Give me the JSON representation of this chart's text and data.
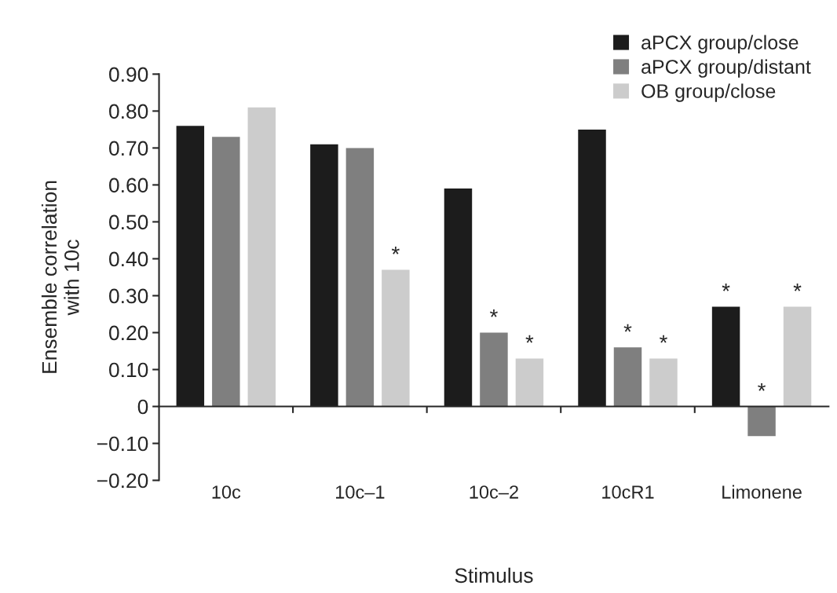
{
  "chart_data": {
    "type": "bar",
    "xlabel": "Stimulus",
    "ylabel": "Ensemble correlation\nwith 10c",
    "categories": [
      "10c",
      "10c–1",
      "10c–2",
      "10cR1",
      "Limonene"
    ],
    "series": [
      {
        "name": "aPCX group/close",
        "color": "#1c1c1c",
        "values": [
          0.76,
          0.71,
          0.59,
          0.75,
          0.27
        ],
        "value_labels": [
          null,
          null,
          null,
          null,
          "*"
        ]
      },
      {
        "name": "aPCX group/distant",
        "color": "#7f7f7f",
        "values": [
          0.73,
          0.7,
          0.2,
          0.16,
          -0.08
        ],
        "value_labels": [
          null,
          null,
          "*",
          "*",
          "*"
        ]
      },
      {
        "name": "OB group/close",
        "color": "#cccccc",
        "values": [
          0.81,
          0.37,
          0.13,
          0.13,
          0.27
        ],
        "value_labels": [
          null,
          "*",
          "*",
          "*",
          "*"
        ]
      }
    ],
    "ylim": [
      -0.2,
      0.9
    ],
    "yticks": [
      {
        "value": -0.2,
        "label": "−0.20"
      },
      {
        "value": -0.1,
        "label": "−0.10"
      },
      0,
      {
        "value": 0.1,
        "label": "0.10"
      },
      {
        "value": 0.2,
        "label": "0.20"
      },
      {
        "value": 0.3,
        "label": "0.30"
      },
      {
        "value": 0.4,
        "label": "0.40"
      },
      {
        "value": 0.5,
        "label": "0.50"
      },
      {
        "value": 0.6,
        "label": "0.60"
      },
      {
        "value": 0.7,
        "label": "0.70"
      },
      {
        "value": 0.8,
        "label": "0.80"
      },
      {
        "value": 0.9,
        "label": "0.90"
      }
    ],
    "legend": "top right"
  }
}
